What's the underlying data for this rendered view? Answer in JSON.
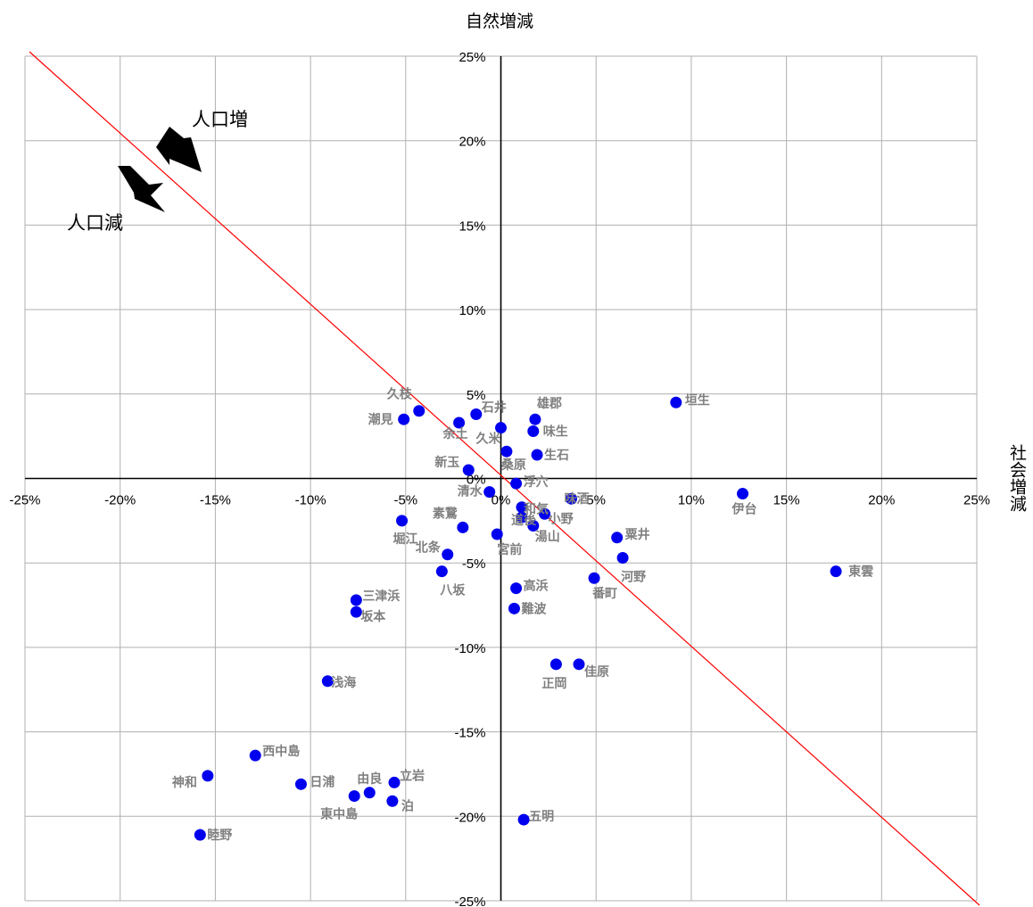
{
  "chart_data": {
    "type": "scatter",
    "xlabel": "社会増減",
    "ylabel": "自然増減",
    "xlim": [
      -25,
      25
    ],
    "ylim": [
      -25,
      25
    ],
    "x_ticks": [
      "-25%",
      "-20%",
      "-15%",
      "-10%",
      "-5%",
      "0%",
      "5%",
      "10%",
      "15%",
      "20%",
      "25%"
    ],
    "y_ticks": [
      "25%",
      "20%",
      "15%",
      "10%",
      "5%",
      "0%",
      "-5%",
      "-10%",
      "-15%",
      "-20%",
      "-25%"
    ],
    "grid": true,
    "reference_line": {
      "from": [
        -25,
        25
      ],
      "to": [
        25,
        -25
      ],
      "color": "#ff0000"
    },
    "annotations": {
      "increase": "人口増",
      "decrease": "人口減"
    },
    "marker_color": "#0000ee",
    "label_color": "#7f7f7f",
    "points": [
      {
        "name": "垣生",
        "x": 9.2,
        "y": 4.5
      },
      {
        "name": "久枝",
        "x": -4.3,
        "y": 4.0
      },
      {
        "name": "潮見",
        "x": -5.1,
        "y": 3.5
      },
      {
        "name": "石井",
        "x": -1.3,
        "y": 3.8
      },
      {
        "name": "余土",
        "x": -2.2,
        "y": 3.3
      },
      {
        "name": "雄郡",
        "x": 1.8,
        "y": 3.5
      },
      {
        "name": "味生",
        "x": 1.7,
        "y": 2.8
      },
      {
        "name": "久米",
        "x": 0.0,
        "y": 3.0
      },
      {
        "name": "生石",
        "x": 1.9,
        "y": 1.4
      },
      {
        "name": "桑原",
        "x": 0.3,
        "y": 1.6
      },
      {
        "name": "新玉",
        "x": -1.7,
        "y": 0.5
      },
      {
        "name": "浮穴",
        "x": 0.8,
        "y": -0.3
      },
      {
        "name": "味酒",
        "x": 3.7,
        "y": -1.2
      },
      {
        "name": "清水",
        "x": -0.6,
        "y": -0.8
      },
      {
        "name": "和気",
        "x": 1.1,
        "y": -1.7
      },
      {
        "name": "道後",
        "x": 1.1,
        "y": -2.3
      },
      {
        "name": "小野",
        "x": 2.3,
        "y": -2.1
      },
      {
        "name": "湯山",
        "x": 1.7,
        "y": -2.8
      },
      {
        "name": "素鵞",
        "x": -2.0,
        "y": -2.9
      },
      {
        "name": "宮前",
        "x": -0.2,
        "y": -3.3
      },
      {
        "name": "北条",
        "x": -2.8,
        "y": -4.5
      },
      {
        "name": "伊台",
        "x": 12.7,
        "y": -0.9
      },
      {
        "name": "堀江",
        "x": -5.2,
        "y": -2.5
      },
      {
        "name": "粟井",
        "x": 6.1,
        "y": -3.5
      },
      {
        "name": "河野",
        "x": 6.4,
        "y": -4.7
      },
      {
        "name": "東雲",
        "x": 17.6,
        "y": -5.5
      },
      {
        "name": "八坂",
        "x": -3.1,
        "y": -5.5
      },
      {
        "name": "番町",
        "x": 4.9,
        "y": -5.9
      },
      {
        "name": "高浜",
        "x": 0.8,
        "y": -6.5
      },
      {
        "name": "三津浜",
        "x": -7.6,
        "y": -7.2
      },
      {
        "name": "坂本",
        "x": -7.6,
        "y": -7.9
      },
      {
        "name": "難波",
        "x": 0.7,
        "y": -7.7
      },
      {
        "name": "正岡",
        "x": 2.9,
        "y": -11.0
      },
      {
        "name": "佳原",
        "x": 4.1,
        "y": -11.0
      },
      {
        "name": "浅海",
        "x": -9.1,
        "y": -12.0
      },
      {
        "name": "西中島",
        "x": -12.9,
        "y": -16.4
      },
      {
        "name": "神和",
        "x": -15.4,
        "y": -17.6
      },
      {
        "name": "日浦",
        "x": -10.5,
        "y": -18.1
      },
      {
        "name": "由良",
        "x": -6.9,
        "y": -18.6
      },
      {
        "name": "立岩",
        "x": -5.6,
        "y": -18.0
      },
      {
        "name": "東中島",
        "x": -7.7,
        "y": -18.8
      },
      {
        "name": "泊",
        "x": -5.7,
        "y": -19.1
      },
      {
        "name": "五明",
        "x": 1.2,
        "y": -20.2
      },
      {
        "name": "睦野",
        "x": -15.8,
        "y": -21.1
      }
    ]
  }
}
